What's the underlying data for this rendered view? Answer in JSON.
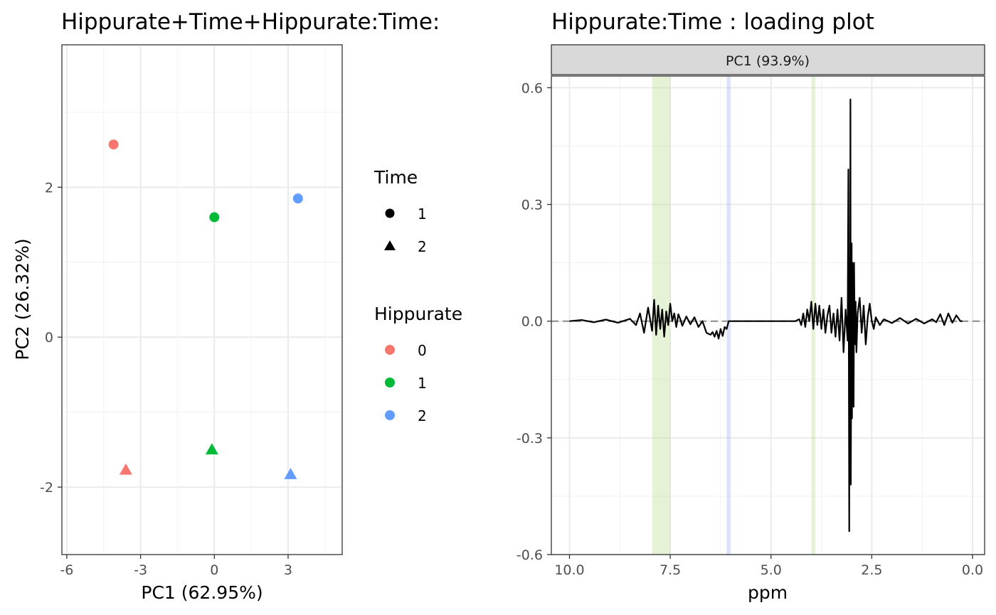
{
  "left": {
    "title": "Hippurate+Time+Hippurate:Time:",
    "chart_data": {
      "type": "scatter",
      "title": "Hippurate+Time+Hippurate:Time:",
      "xlabel": "PC1 (62.95%)",
      "ylabel": "PC2 (26.32%)",
      "xlim": [
        -6.2,
        5.2
      ],
      "ylim": [
        -2.9,
        3.9
      ],
      "x_ticks": [
        -6,
        -3,
        0,
        3
      ],
      "x_tick_labels": [
        "-6",
        "-3",
        "0",
        "3"
      ],
      "y_ticks": [
        -2,
        0,
        2
      ],
      "y_tick_labels": [
        "-2",
        "0",
        "2"
      ],
      "grid": true,
      "points": [
        {
          "x": -4.1,
          "y": 2.57,
          "hippurate": "0",
          "time": "1"
        },
        {
          "x": 0.0,
          "y": 1.6,
          "hippurate": "1",
          "time": "1"
        },
        {
          "x": 3.4,
          "y": 1.85,
          "hippurate": "2",
          "time": "1"
        },
        {
          "x": -3.6,
          "y": -1.77,
          "hippurate": "0",
          "time": "2"
        },
        {
          "x": -0.1,
          "y": -1.5,
          "hippurate": "1",
          "time": "2"
        },
        {
          "x": 3.1,
          "y": -1.83,
          "hippurate": "2",
          "time": "2"
        }
      ]
    },
    "legend": {
      "time_title": "Time",
      "time_items": [
        {
          "label": "1",
          "shape": "circle"
        },
        {
          "label": "2",
          "shape": "triangle"
        }
      ],
      "hippurate_title": "Hippurate",
      "hippurate_items": [
        {
          "label": "0",
          "color": "#F8766D"
        },
        {
          "label": "1",
          "color": "#00BA38"
        },
        {
          "label": "2",
          "color": "#619CFF"
        }
      ]
    }
  },
  "right": {
    "title": "Hippurate:Time : loading plot",
    "strip_label": "PC1 (93.9%)",
    "chart_data": {
      "type": "line",
      "title": "Hippurate:Time : loading plot",
      "xlabel": "ppm",
      "ylabel": "",
      "x_reversed": true,
      "xlim": [
        10.45,
        -0.3
      ],
      "ylim": [
        -0.6,
        0.63
      ],
      "x_ticks": [
        10.0,
        7.5,
        5.0,
        2.5,
        0.0
      ],
      "x_tick_labels": [
        "10.0",
        "7.5",
        "5.0",
        "2.5",
        "0.0"
      ],
      "y_ticks": [
        -0.6,
        -0.3,
        0.0,
        0.3,
        0.6
      ],
      "y_tick_labels": [
        "-0.6",
        "-0.3",
        "0.0",
        "0.3",
        "0.6"
      ],
      "grid": true,
      "zero_line": true,
      "highlight_bands": [
        {
          "from": 7.95,
          "to": 7.5,
          "color": "#B8D98A"
        },
        {
          "from": 6.1,
          "to": 6.0,
          "color": "#9DB3F0"
        },
        {
          "from": 4.0,
          "to": 3.9,
          "color": "#B8D98A"
        }
      ],
      "series": [
        {
          "color": "#000000",
          "x": [
            10.0,
            9.7,
            9.4,
            9.1,
            8.8,
            8.5,
            8.35,
            8.25,
            8.15,
            8.05,
            7.95,
            7.9,
            7.85,
            7.8,
            7.75,
            7.7,
            7.65,
            7.6,
            7.55,
            7.5,
            7.45,
            7.4,
            7.35,
            7.3,
            7.25,
            7.2,
            7.1,
            7.0,
            6.9,
            6.8,
            6.7,
            6.6,
            6.5,
            6.45,
            6.4,
            6.35,
            6.3,
            6.25,
            6.2,
            6.15,
            6.1,
            6.05,
            6.0,
            5.6,
            5.2,
            4.8,
            4.4,
            4.3,
            4.25,
            4.2,
            4.15,
            4.1,
            4.05,
            4.0,
            3.95,
            3.9,
            3.85,
            3.8,
            3.75,
            3.7,
            3.65,
            3.6,
            3.55,
            3.5,
            3.45,
            3.4,
            3.35,
            3.3,
            3.25,
            3.2,
            3.15,
            3.1,
            3.08,
            3.06,
            3.05,
            3.04,
            3.03,
            3.02,
            3.0,
            2.99,
            2.98,
            2.97,
            2.96,
            2.95,
            2.94,
            2.92,
            2.9,
            2.88,
            2.85,
            2.8,
            2.75,
            2.7,
            2.65,
            2.6,
            2.55,
            2.5,
            2.45,
            2.4,
            2.3,
            2.2,
            2.0,
            1.8,
            1.6,
            1.4,
            1.2,
            1.0,
            0.9,
            0.8,
            0.7,
            0.6,
            0.5,
            0.4,
            0.3,
            0.25
          ],
          "y": [
            0.0,
            0.003,
            -0.003,
            0.004,
            -0.004,
            0.006,
            -0.01,
            0.02,
            -0.03,
            0.035,
            -0.025,
            0.055,
            -0.035,
            0.04,
            -0.02,
            0.03,
            -0.04,
            0.025,
            -0.01,
            0.045,
            0.0,
            0.02,
            -0.015,
            0.018,
            0.005,
            -0.012,
            0.012,
            -0.008,
            0.01,
            -0.015,
            0.0,
            -0.03,
            -0.035,
            -0.028,
            -0.04,
            -0.025,
            -0.045,
            -0.02,
            -0.038,
            -0.015,
            -0.02,
            0.0,
            0.0,
            0.0,
            0.0,
            0.0,
            0.0,
            0.005,
            -0.01,
            0.02,
            -0.015,
            0.03,
            0.0,
            0.05,
            -0.02,
            0.045,
            -0.01,
            0.04,
            -0.02,
            0.03,
            -0.03,
            0.015,
            0.04,
            -0.03,
            0.02,
            -0.04,
            0.03,
            -0.05,
            0.06,
            -0.08,
            0.03,
            -0.05,
            0.39,
            -0.54,
            0.15,
            -0.3,
            0.57,
            -0.42,
            0.2,
            -0.25,
            0.15,
            -0.12,
            0.08,
            -0.22,
            0.15,
            -0.06,
            0.05,
            -0.08,
            0.02,
            0.06,
            -0.03,
            0.04,
            -0.06,
            0.01,
            0.045,
            0.0,
            -0.02,
            0.01,
            -0.01,
            0.005,
            -0.005,
            0.008,
            -0.006,
            0.006,
            -0.006,
            0.005,
            -0.003,
            0.018,
            -0.01,
            0.02,
            -0.004,
            0.015,
            0.0,
            0.0
          ]
        }
      ]
    }
  }
}
